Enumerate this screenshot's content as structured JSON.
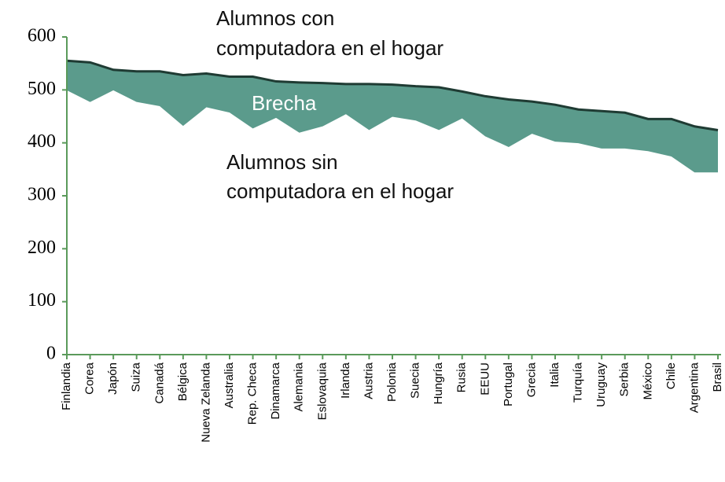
{
  "chart_data": {
    "type": "area_gap",
    "categories": [
      "Finlandia",
      "Corea",
      "Japón",
      "Suiza",
      "Canadá",
      "Bélgica",
      "Nueva Zelanda",
      "Australia",
      "Rep. Checa",
      "Dinamarca",
      "Alemania",
      "Eslovaquia",
      "Irlanda",
      "Austria",
      "Polonia",
      "Suecia",
      "Hungría",
      "Rusia",
      "EEUU",
      "Portugal",
      "Grecia",
      "Italia",
      "Turquía",
      "Uruguay",
      "Serbia",
      "México",
      "Chile",
      "Argentina",
      "Brasil"
    ],
    "series": [
      {
        "color": "#1f3b33",
        "values": [
          555,
          552,
          538,
          535,
          535,
          528,
          531,
          525,
          525,
          516,
          514,
          513,
          511,
          511,
          510,
          507,
          505,
          497,
          488,
          482,
          478,
          472,
          463,
          460,
          457,
          445,
          445,
          431,
          424
        ]
      },
      {
        "color": "#5b9b8c",
        "values": [
          500,
          478,
          500,
          478,
          470,
          433,
          468,
          458,
          428,
          448,
          420,
          432,
          455,
          425,
          450,
          443,
          425,
          447,
          413,
          393,
          418,
          403,
          400,
          390,
          390,
          385,
          375,
          345,
          345
        ]
      }
    ],
    "annotations": {
      "top": [
        "Alumnos con",
        "computadora en el hogar"
      ],
      "gap": "Brecha",
      "bottom": [
        "Alumnos sin",
        "computadora en el hogar"
      ]
    },
    "axis_color": "#5a9a5a",
    "ylim": [
      0,
      600
    ],
    "yticks": [
      0,
      100,
      200,
      300,
      400,
      500,
      600
    ]
  }
}
